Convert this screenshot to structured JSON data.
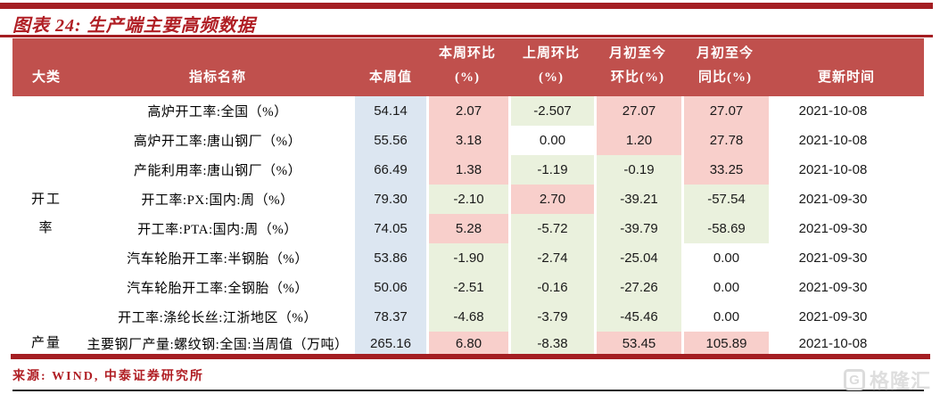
{
  "title": "图表 24: 生产端主要高频数据",
  "source": "来源: WIND, 中泰证券研究所",
  "watermark": {
    "icon": "G",
    "text": "格隆汇"
  },
  "colors": {
    "header_bg": "#C0504D",
    "title_red": "#B01E24",
    "line_red": "#A41E22",
    "value_blue": "#DCE6F1",
    "pos_pink": "#F8CFCB",
    "neg_green": "#EAF1DD",
    "zero_white": "#FFFFFF"
  },
  "table": {
    "headers": {
      "category": "大类",
      "indicator": "指标名称",
      "week_value": "本周值",
      "wow": [
        "本周环比",
        "(%)"
      ],
      "prev_wow": [
        "上周环比",
        "(%)"
      ],
      "mtd_mom": [
        "月初至今",
        "环比(%)"
      ],
      "mtd_yoy": [
        "月初至今",
        "同比(%)"
      ],
      "update_time": "更新时间"
    },
    "categories": [
      {
        "label": "开工率",
        "lines": [
          "开工",
          "率"
        ],
        "rowspan": 8
      },
      {
        "label": "产量",
        "rowspan": 1
      }
    ],
    "rows": [
      {
        "name": "高炉开工率:全国（%）",
        "week_value": "54.14",
        "values": [
          "2.07",
          "-2.507",
          "27.07",
          "27.07"
        ],
        "tones": [
          "pos",
          "neg",
          "pos",
          "pos"
        ],
        "date": "2021-10-08"
      },
      {
        "name": "高炉开工率:唐山钢厂（%）",
        "week_value": "55.56",
        "values": [
          "3.18",
          "0.00",
          "1.20",
          "27.78"
        ],
        "tones": [
          "pos",
          "zero",
          "pos",
          "pos"
        ],
        "date": "2021-10-08"
      },
      {
        "name": "产能利用率:唐山钢厂（%）",
        "week_value": "66.49",
        "values": [
          "1.38",
          "-1.19",
          "-0.19",
          "33.25"
        ],
        "tones": [
          "pos",
          "neg",
          "neg",
          "pos"
        ],
        "date": "2021-10-08"
      },
      {
        "name": "开工率:PX:国内:周（%）",
        "week_value": "79.30",
        "values": [
          "-2.10",
          "2.70",
          "-39.21",
          "-57.54"
        ],
        "tones": [
          "neg",
          "pos",
          "neg",
          "neg"
        ],
        "date": "2021-09-30"
      },
      {
        "name": "开工率:PTA:国内:周（%）",
        "week_value": "74.05",
        "values": [
          "5.28",
          "-5.72",
          "-39.79",
          "-58.69"
        ],
        "tones": [
          "pos",
          "neg",
          "neg",
          "neg"
        ],
        "date": "2021-09-30"
      },
      {
        "name": "汽车轮胎开工率:半钢胎（%）",
        "week_value": "53.86",
        "values": [
          "-1.90",
          "-2.74",
          "-25.04",
          "0.00"
        ],
        "tones": [
          "neg",
          "neg",
          "neg",
          "zero"
        ],
        "date": "2021-09-30"
      },
      {
        "name": "汽车轮胎开工率:全钢胎（%）",
        "week_value": "50.06",
        "values": [
          "-2.51",
          "-0.16",
          "-27.26",
          "0.00"
        ],
        "tones": [
          "neg",
          "neg",
          "neg",
          "zero"
        ],
        "date": "2021-09-30"
      },
      {
        "name": "开工率:涤纶长丝:江浙地区（%）",
        "week_value": "78.37",
        "values": [
          "-4.68",
          "-3.79",
          "-45.46",
          "0.00"
        ],
        "tones": [
          "neg",
          "neg",
          "neg",
          "zero"
        ],
        "date": "2021-09-30"
      },
      {
        "name": "主要钢厂产量:螺纹钢:全国:当周值（万吨）",
        "week_value": "265.16",
        "values": [
          "6.80",
          "-8.38",
          "53.45",
          "105.89"
        ],
        "tones": [
          "pos",
          "neg",
          "pos",
          "pos"
        ],
        "date": "2021-10-08"
      }
    ]
  },
  "chart_data": {
    "type": "table",
    "title": "图表 24: 生产端主要高频数据",
    "columns": [
      "大类",
      "指标名称",
      "本周值",
      "本周环比 (%)",
      "上周环比 (%)",
      "月初至今 环比(%)",
      "月初至今 同比(%)",
      "更新时间"
    ],
    "rows": [
      [
        "开工率",
        "高炉开工率:全国（%）",
        54.14,
        2.07,
        -2.507,
        27.07,
        27.07,
        "2021-10-08"
      ],
      [
        "开工率",
        "高炉开工率:唐山钢厂（%）",
        55.56,
        3.18,
        0.0,
        1.2,
        27.78,
        "2021-10-08"
      ],
      [
        "开工率",
        "产能利用率:唐山钢厂（%）",
        66.49,
        1.38,
        -1.19,
        -0.19,
        33.25,
        "2021-10-08"
      ],
      [
        "开工率",
        "开工率:PX:国内:周（%）",
        79.3,
        -2.1,
        2.7,
        -39.21,
        -57.54,
        "2021-09-30"
      ],
      [
        "开工率",
        "开工率:PTA:国内:周（%）",
        74.05,
        5.28,
        -5.72,
        -39.79,
        -58.69,
        "2021-09-30"
      ],
      [
        "开工率",
        "汽车轮胎开工率:半钢胎（%）",
        53.86,
        -1.9,
        -2.74,
        -25.04,
        0.0,
        "2021-09-30"
      ],
      [
        "开工率",
        "汽车轮胎开工率:全钢胎（%）",
        50.06,
        -2.51,
        -0.16,
        -27.26,
        0.0,
        "2021-09-30"
      ],
      [
        "开工率",
        "开工率:涤纶长丝:江浙地区（%）",
        78.37,
        -4.68,
        -3.79,
        -45.46,
        0.0,
        "2021-09-30"
      ],
      [
        "产量",
        "主要钢厂产量:螺纹钢:全国:当周值（万吨）",
        265.16,
        6.8,
        -8.38,
        53.45,
        105.89,
        "2021-10-08"
      ]
    ],
    "cell_color_legend": {
      "pink": "positive",
      "green": "negative",
      "white": "zero"
    }
  }
}
